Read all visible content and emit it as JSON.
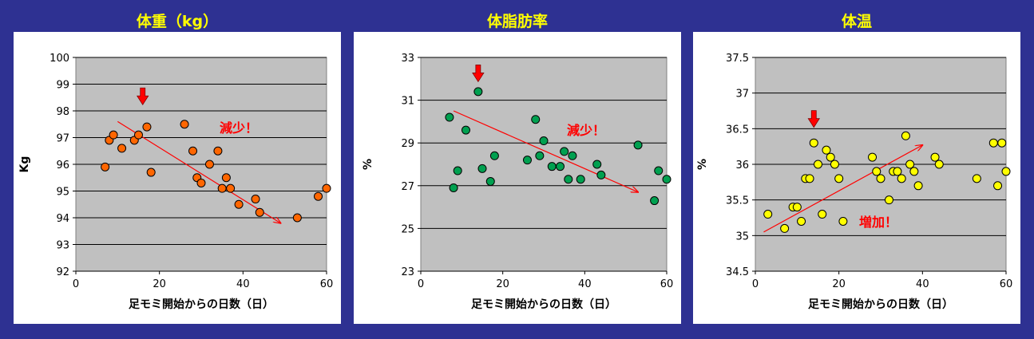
{
  "chart_data": [
    {
      "type": "scatter",
      "title": "体重（kg）",
      "xlabel": "足モミ開始からの日数（日）",
      "ylabel": "Kg",
      "xlim": [
        0,
        60
      ],
      "ylim": [
        92,
        100
      ],
      "xticks": [
        0,
        20,
        40,
        60
      ],
      "yticks": [
        92,
        93,
        94,
        95,
        96,
        97,
        98,
        99,
        100
      ],
      "grid": "horizontal",
      "plot_bg": "#C0C0C0",
      "marker_color": "#FF6600",
      "annotation": "減少！",
      "annotation_color": "#FF0000",
      "trend": {
        "from": [
          10,
          97.6
        ],
        "to": [
          49,
          93.8
        ],
        "color": "#FF0000"
      },
      "highlight_arrow": {
        "x": 16,
        "y": 98.5,
        "color": "#FF0000"
      },
      "points": [
        {
          "x": 7,
          "y": 95.9
        },
        {
          "x": 8,
          "y": 96.9
        },
        {
          "x": 9,
          "y": 97.1
        },
        {
          "x": 11,
          "y": 96.6
        },
        {
          "x": 14,
          "y": 96.9
        },
        {
          "x": 15,
          "y": 97.1
        },
        {
          "x": 17,
          "y": 97.4
        },
        {
          "x": 18,
          "y": 95.7
        },
        {
          "x": 26,
          "y": 97.5
        },
        {
          "x": 28,
          "y": 96.5
        },
        {
          "x": 29,
          "y": 95.5
        },
        {
          "x": 30,
          "y": 95.3
        },
        {
          "x": 32,
          "y": 96.0
        },
        {
          "x": 34,
          "y": 96.5
        },
        {
          "x": 35,
          "y": 95.1
        },
        {
          "x": 36,
          "y": 95.5
        },
        {
          "x": 37,
          "y": 95.1
        },
        {
          "x": 39,
          "y": 94.5
        },
        {
          "x": 43,
          "y": 94.7
        },
        {
          "x": 44,
          "y": 94.2
        },
        {
          "x": 53,
          "y": 94.0
        },
        {
          "x": 58,
          "y": 94.8
        },
        {
          "x": 60,
          "y": 95.1
        }
      ]
    },
    {
      "type": "scatter",
      "title": "体脂肪率",
      "xlabel": "足モミ開始からの日数（日）",
      "ylabel": "%",
      "xlim": [
        0,
        60
      ],
      "ylim": [
        23,
        33
      ],
      "xticks": [
        0,
        20,
        40,
        60
      ],
      "yticks": [
        23,
        25,
        27,
        29,
        31,
        33
      ],
      "grid": "horizontal",
      "plot_bg": "#C0C0C0",
      "marker_color": "#00A050",
      "annotation": "減少！",
      "annotation_color": "#FF0000",
      "trend": {
        "from": [
          8,
          30.5
        ],
        "to": [
          53,
          26.7
        ],
        "color": "#FF0000"
      },
      "highlight_arrow": {
        "x": 14,
        "y": 32.2,
        "color": "#FF0000"
      },
      "points": [
        {
          "x": 7,
          "y": 30.2
        },
        {
          "x": 8,
          "y": 26.9
        },
        {
          "x": 9,
          "y": 27.7
        },
        {
          "x": 11,
          "y": 29.6
        },
        {
          "x": 14,
          "y": 31.4
        },
        {
          "x": 15,
          "y": 27.8
        },
        {
          "x": 17,
          "y": 27.2
        },
        {
          "x": 18,
          "y": 28.4
        },
        {
          "x": 26,
          "y": 28.2
        },
        {
          "x": 28,
          "y": 30.1
        },
        {
          "x": 29,
          "y": 28.4
        },
        {
          "x": 30,
          "y": 29.1
        },
        {
          "x": 32,
          "y": 27.9
        },
        {
          "x": 34,
          "y": 27.9
        },
        {
          "x": 35,
          "y": 28.6
        },
        {
          "x": 36,
          "y": 27.3
        },
        {
          "x": 37,
          "y": 28.4
        },
        {
          "x": 39,
          "y": 27.3
        },
        {
          "x": 43,
          "y": 28.0
        },
        {
          "x": 44,
          "y": 27.5
        },
        {
          "x": 53,
          "y": 28.9
        },
        {
          "x": 57,
          "y": 26.3
        },
        {
          "x": 58,
          "y": 27.7
        },
        {
          "x": 60,
          "y": 27.3
        }
      ]
    },
    {
      "type": "scatter",
      "title": "体温",
      "xlabel": "足モミ開始からの日数（日）",
      "ylabel": "%",
      "xlim": [
        0,
        60
      ],
      "ylim": [
        34.5,
        37.5
      ],
      "xticks": [
        0,
        20,
        40,
        60
      ],
      "yticks": [
        34.5,
        35,
        35.5,
        36,
        36.5,
        37,
        37.5
      ],
      "grid": "horizontal",
      "plot_bg": "#C0C0C0",
      "marker_color": "#FFFF00",
      "annotation": "増加！",
      "annotation_color": "#FF0000",
      "trend": {
        "from": [
          2,
          35.05
        ],
        "to": [
          40,
          36.27
        ],
        "color": "#FF0000"
      },
      "highlight_arrow": {
        "x": 14,
        "y": 36.62,
        "color": "#FF0000"
      },
      "points": [
        {
          "x": 3,
          "y": 35.3
        },
        {
          "x": 7,
          "y": 35.1
        },
        {
          "x": 9,
          "y": 35.4
        },
        {
          "x": 10,
          "y": 35.4
        },
        {
          "x": 11,
          "y": 35.2
        },
        {
          "x": 12,
          "y": 35.8
        },
        {
          "x": 13,
          "y": 35.8
        },
        {
          "x": 14,
          "y": 36.3
        },
        {
          "x": 15,
          "y": 36.0
        },
        {
          "x": 16,
          "y": 35.3
        },
        {
          "x": 17,
          "y": 36.2
        },
        {
          "x": 18,
          "y": 36.1
        },
        {
          "x": 19,
          "y": 36.0
        },
        {
          "x": 20,
          "y": 35.8
        },
        {
          "x": 21,
          "y": 35.2
        },
        {
          "x": 28,
          "y": 36.1
        },
        {
          "x": 29,
          "y": 35.9
        },
        {
          "x": 30,
          "y": 35.8
        },
        {
          "x": 32,
          "y": 35.5
        },
        {
          "x": 33,
          "y": 35.9
        },
        {
          "x": 34,
          "y": 35.9
        },
        {
          "x": 35,
          "y": 35.8
        },
        {
          "x": 36,
          "y": 36.4
        },
        {
          "x": 37,
          "y": 36.0
        },
        {
          "x": 38,
          "y": 35.9
        },
        {
          "x": 39,
          "y": 35.7
        },
        {
          "x": 43,
          "y": 36.1
        },
        {
          "x": 44,
          "y": 36.0
        },
        {
          "x": 53,
          "y": 35.8
        },
        {
          "x": 57,
          "y": 36.3
        },
        {
          "x": 58,
          "y": 35.7
        },
        {
          "x": 59,
          "y": 36.3
        },
        {
          "x": 60,
          "y": 35.9
        }
      ]
    }
  ]
}
